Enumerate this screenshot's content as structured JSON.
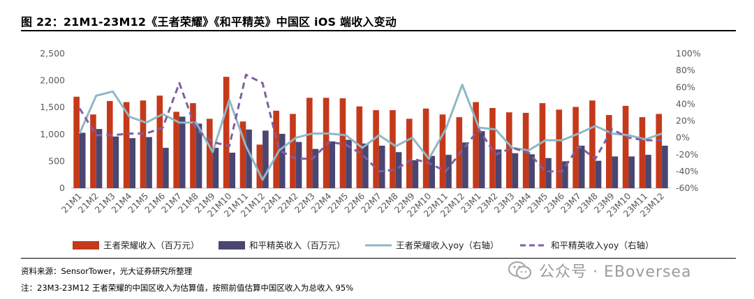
{
  "header": {
    "title": "图 22：21M1-23M12《王者荣耀》《和平精英》中国区 iOS 端收入变动"
  },
  "footer": {
    "source": "资料来源：SensorTower，光大证券研究所整理",
    "note": "注：23M3-23M12 王者荣耀的中国区收入为估算值，按照前值估算中国区收入为总收入 95%",
    "watermark": "公众号 · EBoversea"
  },
  "icons": {
    "watermark": "wechat-icon"
  },
  "chart_data": {
    "type": "bar+line",
    "categories": [
      "21M1",
      "21M2",
      "21M3",
      "21M4",
      "21M5",
      "21M6",
      "21M7",
      "21M8",
      "21M9",
      "21M10",
      "21M11",
      "21M12",
      "22M1",
      "22M2",
      "22M3",
      "22M4",
      "22M5",
      "22M6",
      "22M7",
      "22M8",
      "22M9",
      "22M10",
      "22M11",
      "22M12",
      "23M1",
      "23M2",
      "23M3",
      "23M4",
      "23M5",
      "23M6",
      "23M7",
      "23M8",
      "23M9",
      "23M10",
      "23M11",
      "23M12"
    ],
    "left_axis": {
      "ylim": [
        0,
        2500
      ],
      "ticks": [
        0,
        500,
        1000,
        1500,
        2000,
        2500
      ],
      "tick_labels": [
        "0",
        "500",
        "1,000",
        "1,500",
        "2,000",
        "2,500"
      ]
    },
    "right_axis": {
      "ylim": [
        -60,
        100
      ],
      "ticks": [
        -60,
        -40,
        -20,
        0,
        20,
        40,
        60,
        80,
        100
      ],
      "tick_labels": [
        "-60%",
        "-40%",
        "-20%",
        "0%",
        "20%",
        "40%",
        "60%",
        "80%",
        "100%"
      ]
    },
    "series": [
      {
        "name": "王者荣耀收入（百万元）",
        "kind": "bar",
        "axis": "left",
        "color": "#C5391B",
        "values": [
          1700,
          1370,
          1620,
          1600,
          1630,
          1720,
          1420,
          1580,
          1290,
          2070,
          1240,
          810,
          1440,
          1380,
          1680,
          1680,
          1670,
          1520,
          1450,
          1450,
          1290,
          1480,
          1370,
          1320,
          1600,
          1490,
          1410,
          1400,
          1580,
          1460,
          1510,
          1630,
          1360,
          1530,
          1320,
          1380
        ]
      },
      {
        "name": "和平精英收入（百万元）",
        "kind": "bar",
        "axis": "left",
        "color": "#4A4672",
        "values": [
          1030,
          1100,
          960,
          930,
          950,
          750,
          1330,
          1200,
          750,
          660,
          1090,
          1070,
          1010,
          860,
          730,
          870,
          900,
          830,
          790,
          670,
          520,
          600,
          620,
          850,
          1060,
          720,
          650,
          630,
          560,
          500,
          790,
          510,
          590,
          590,
          620,
          790
        ]
      },
      {
        "name": "王者荣耀收入yoy（右轴）",
        "kind": "line",
        "axis": "right",
        "color": "#8FB7C6",
        "dash": "solid",
        "values": [
          5,
          50,
          55,
          25,
          18,
          28,
          18,
          18,
          -17,
          45,
          -10,
          -50,
          -15,
          0,
          5,
          5,
          3,
          -12,
          3,
          -10,
          0,
          -25,
          10,
          63,
          12,
          10,
          -12,
          -15,
          -3,
          -3,
          5,
          14,
          5,
          3,
          -2,
          5
        ]
      },
      {
        "name": "和平精英收入yoy（右轴）",
        "kind": "line",
        "axis": "right",
        "color": "#7E5FA3",
        "dash": "dashed",
        "values": [
          35,
          3,
          3,
          5,
          5,
          12,
          65,
          10,
          -5,
          -10,
          75,
          65,
          -15,
          -25,
          -25,
          -5,
          -8,
          -20,
          -40,
          -38,
          -25,
          -30,
          -40,
          -15,
          10,
          -20,
          -12,
          -18,
          -40,
          -40,
          -10,
          -25,
          10,
          0,
          -3,
          -3
        ]
      }
    ],
    "legend_placement": "bottom",
    "grid": false
  }
}
